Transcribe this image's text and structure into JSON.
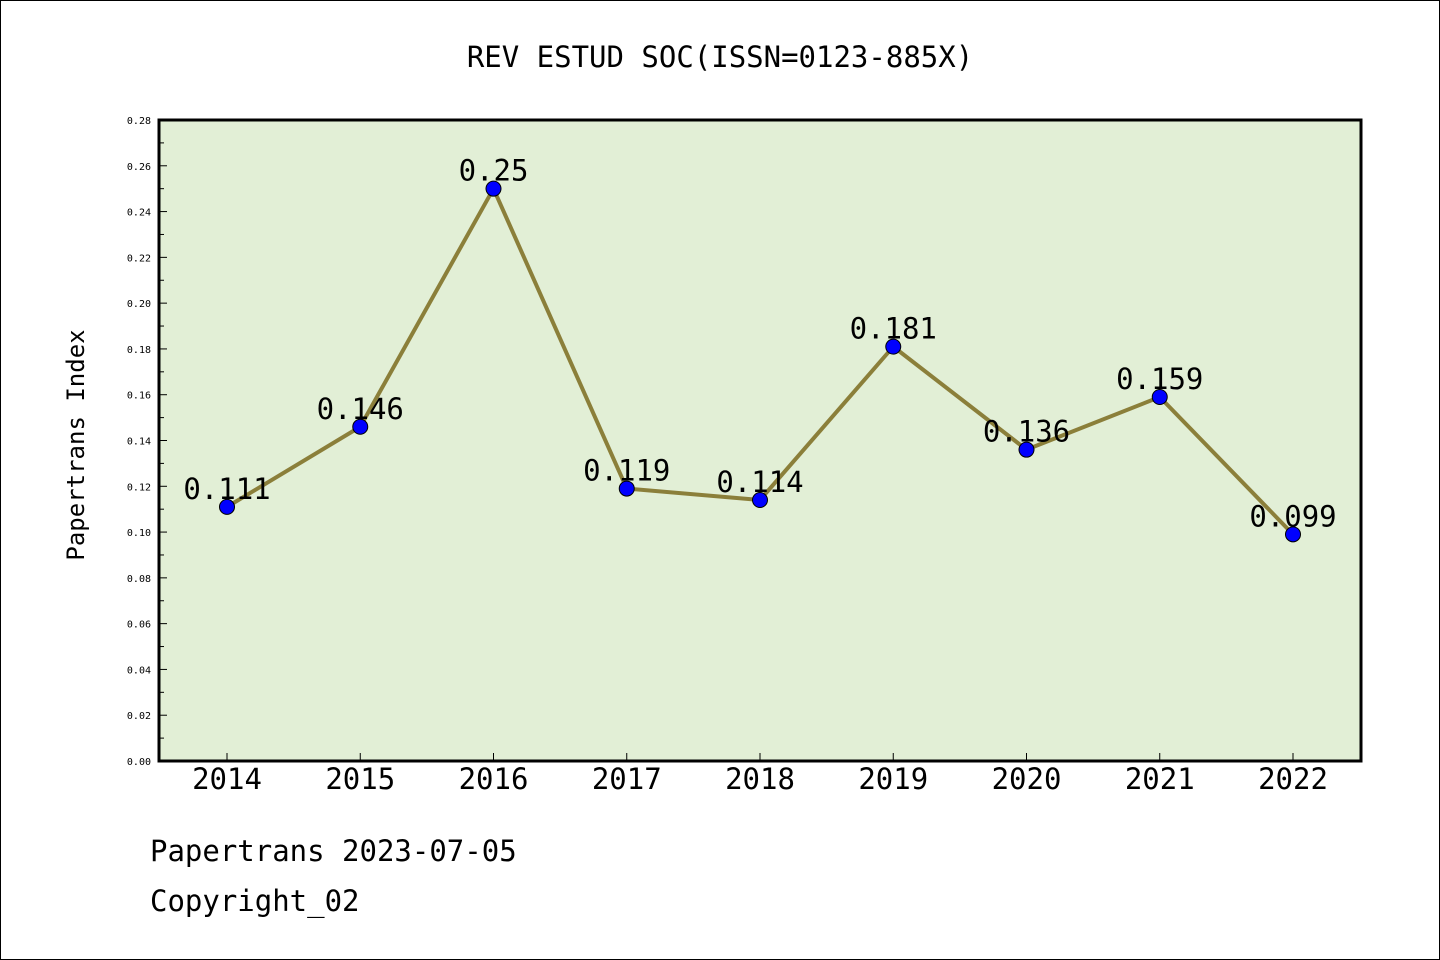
{
  "chart_data": {
    "type": "line",
    "title": "REV ESTUD SOC(ISSN=0123-885X)",
    "xlabel": "",
    "ylabel": "Papertrans Index",
    "categories": [
      "2014",
      "2015",
      "2016",
      "2017",
      "2018",
      "2019",
      "2020",
      "2021",
      "2022"
    ],
    "series": [
      {
        "values": [
          0.111,
          0.146,
          0.25,
          0.119,
          0.114,
          0.181,
          0.136,
          0.159,
          0.099
        ],
        "labels": [
          "0.111",
          "0.146",
          "0.25",
          "0.119",
          "0.114",
          "0.181",
          "0.136",
          "0.159",
          "0.099"
        ]
      }
    ],
    "ylim": [
      0,
      0.28
    ],
    "yticks": [
      "0.00",
      "0.02",
      "0.04",
      "0.06",
      "0.08",
      "0.10",
      "0.12",
      "0.14",
      "0.16",
      "0.18",
      "0.20",
      "0.22",
      "0.24",
      "0.26",
      "0.28"
    ],
    "grid": false,
    "colors": {
      "plot_background": "#e2efd6",
      "line": "#8b7f3a",
      "marker": "#0000ff"
    }
  },
  "footer": {
    "line1": "Papertrans 2023-07-05",
    "line2": "Copyright_02"
  }
}
